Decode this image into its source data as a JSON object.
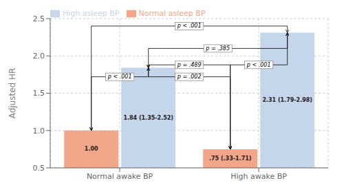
{
  "chart_data": {
    "type": "bar",
    "categories": [
      "Normal awake BP",
      "High awake BP"
    ],
    "series": [
      {
        "name": "Normal asleep BP",
        "color": "#f4a68a",
        "values": [
          1.0,
          0.75
        ],
        "value_labels": [
          "1.00",
          ".75 (.33-1.71)"
        ]
      },
      {
        "name": "High asleep BP",
        "color": "#c5d5ea",
        "values": [
          1.84,
          2.31
        ],
        "value_labels": [
          "1.84 (1.35-2.52)",
          "2.31 (1.79-2.98)"
        ]
      }
    ],
    "y_label": "Adjusted HR",
    "ylim": [
      0.5,
      2.5
    ],
    "yticks": [
      0.5,
      {
        "value": 1.0,
        "label": "1.0"
      },
      1.5,
      {
        "value": 2.0,
        "label": "2.0"
      },
      2.5
    ],
    "grid": true,
    "legend": "upper left",
    "data_labels": true,
    "annotations": [
      {
        "text": "p < .001",
        "y": 1.72,
        "from": [
          "Normal awake BP",
          "Normal asleep BP"
        ],
        "to": [
          "Normal awake BP",
          "High asleep BP"
        ]
      },
      {
        "text": "p = .489",
        "y": 1.88,
        "from": [
          "Normal awake BP",
          "High asleep BP"
        ],
        "to": [
          "High awake BP",
          "Normal asleep BP"
        ]
      },
      {
        "text": "p = .002",
        "y": 1.72,
        "from": [
          "Normal awake BP",
          "High asleep BP"
        ],
        "to": [
          "High awake BP",
          "Normal asleep BP"
        ]
      },
      {
        "text": "p < .001",
        "y": 1.88,
        "from": [
          "High awake BP",
          "Normal asleep BP"
        ],
        "to": [
          "High awake BP",
          "High asleep BP"
        ]
      },
      {
        "text": "p = .385",
        "y": 2.1,
        "from": [
          "Normal awake BP",
          "High asleep BP"
        ],
        "to": [
          "High awake BP",
          "High asleep BP"
        ]
      },
      {
        "text": "p < .001",
        "y": 2.4,
        "from": [
          "Normal awake BP",
          "Normal asleep BP"
        ],
        "to": [
          "High awake BP",
          "High asleep BP"
        ]
      }
    ]
  }
}
